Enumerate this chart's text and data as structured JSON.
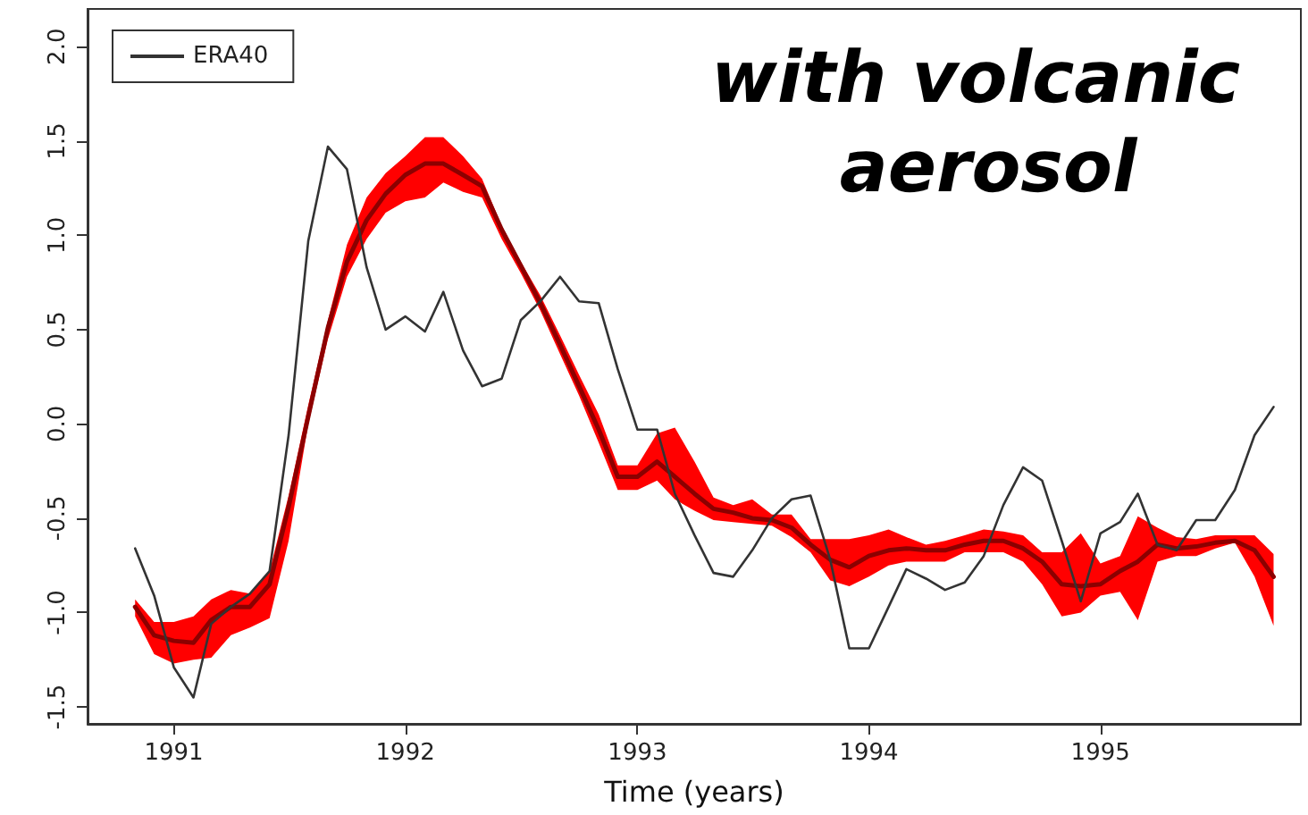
{
  "chart_data": {
    "type": "line",
    "title": "with volcanic aerosol",
    "xlabel": "Time (years)",
    "x": [
      "1990-11",
      "1990-12",
      "1991-01",
      "1991-02",
      "1991-03",
      "1991-04",
      "1991-05",
      "1991-06",
      "1991-07",
      "1991-08",
      "1991-09",
      "1991-10",
      "1991-11",
      "1991-12",
      "1992-01",
      "1992-02",
      "1992-03",
      "1992-04",
      "1992-05",
      "1992-06",
      "1992-07",
      "1992-08",
      "1992-09",
      "1992-10",
      "1992-11",
      "1992-12",
      "1993-01",
      "1993-02",
      "1993-03",
      "1993-04",
      "1993-05",
      "1993-06",
      "1993-07",
      "1993-08",
      "1993-09",
      "1993-10",
      "1993-11",
      "1993-12",
      "1994-01",
      "1994-02",
      "1994-03",
      "1994-04",
      "1994-05",
      "1994-06",
      "1994-07",
      "1994-08",
      "1994-09",
      "1994-10",
      "1994-11",
      "1994-12",
      "1995-01",
      "1995-02",
      "1995-03",
      "1995-04",
      "1995-05",
      "1995-06",
      "1995-07",
      "1995-08",
      "1995-09",
      "1995-10"
    ],
    "series": [
      {
        "color": "#8c0000",
        "values": [
          -0.97,
          -1.12,
          -1.15,
          -1.16,
          -1.04,
          -0.97,
          -0.97,
          -0.85,
          -0.44,
          0.04,
          0.51,
          0.86,
          1.08,
          1.22,
          1.32,
          1.38,
          1.38,
          1.32,
          1.26,
          1.03,
          0.84,
          0.64,
          0.42,
          0.2,
          -0.03,
          -0.28,
          -0.28,
          -0.2,
          -0.28,
          -0.37,
          -0.45,
          -0.47,
          -0.5,
          -0.51,
          -0.55,
          -0.64,
          -0.72,
          -0.76,
          -0.7,
          -0.67,
          -0.66,
          -0.67,
          -0.67,
          -0.64,
          -0.62,
          -0.62,
          -0.66,
          -0.73,
          -0.85,
          -0.86,
          -0.85,
          -0.78,
          -0.73,
          -0.64,
          -0.66,
          -0.65,
          -0.63,
          -0.62,
          -0.67,
          -0.81
        ],
        "upper": [
          -0.93,
          -1.05,
          -1.05,
          -1.02,
          -0.93,
          -0.88,
          -0.9,
          -0.78,
          -0.38,
          0.1,
          0.55,
          0.95,
          1.2,
          1.33,
          1.42,
          1.52,
          1.52,
          1.42,
          1.3,
          1.05,
          0.86,
          0.68,
          0.47,
          0.26,
          0.05,
          -0.22,
          -0.22,
          -0.05,
          -0.02,
          -0.2,
          -0.39,
          -0.43,
          -0.4,
          -0.48,
          -0.48,
          -0.61,
          -0.61,
          -0.61,
          -0.59,
          -0.56,
          -0.6,
          -0.64,
          -0.62,
          -0.59,
          -0.56,
          -0.57,
          -0.59,
          -0.68,
          -0.68,
          -0.58,
          -0.74,
          -0.7,
          -0.49,
          -0.55,
          -0.6,
          -0.61,
          -0.59,
          -0.59,
          -0.59,
          -0.69
        ],
        "lower": [
          -1.02,
          -1.22,
          -1.27,
          -1.25,
          -1.24,
          -1.12,
          -1.08,
          -1.03,
          -0.62,
          0.0,
          0.45,
          0.78,
          0.98,
          1.12,
          1.18,
          1.2,
          1.28,
          1.23,
          1.2,
          0.98,
          0.8,
          0.6,
          0.37,
          0.15,
          -0.1,
          -0.35,
          -0.35,
          -0.3,
          -0.4,
          -0.46,
          -0.51,
          -0.52,
          -0.53,
          -0.54,
          -0.6,
          -0.68,
          -0.83,
          -0.86,
          -0.81,
          -0.75,
          -0.73,
          -0.73,
          -0.73,
          -0.68,
          -0.68,
          -0.68,
          -0.73,
          -0.85,
          -1.02,
          -1.0,
          -0.91,
          -0.89,
          -1.04,
          -0.73,
          -0.7,
          -0.7,
          -0.66,
          -0.63,
          -0.81,
          -1.07
        ]
      },
      {
        "name": "ERA40",
        "color": "#333333",
        "values": [
          -0.66,
          -0.91,
          -1.29,
          -1.45,
          -1.06,
          -0.97,
          -0.9,
          -0.78,
          -0.06,
          0.97,
          1.47,
          1.35,
          0.83,
          0.5,
          0.57,
          0.49,
          0.7,
          0.39,
          0.2,
          0.24,
          0.55,
          0.65,
          0.78,
          0.65,
          0.64,
          0.29,
          -0.03,
          -0.03,
          -0.37,
          -0.59,
          -0.79,
          -0.81,
          -0.67,
          -0.5,
          -0.4,
          -0.38,
          -0.72,
          -1.19,
          -1.19,
          -0.97,
          -0.77,
          -0.82,
          -0.88,
          -0.84,
          -0.7,
          -0.43,
          -0.23,
          -0.3,
          -0.62,
          -0.94,
          -0.58,
          -0.52,
          -0.37,
          -0.64,
          -0.67,
          -0.51,
          -0.51,
          -0.35,
          -0.06,
          0.09
        ]
      }
    ],
    "xlim": [
      "1990-08-18",
      "1995-11-13"
    ],
    "xticks": [
      "1991",
      "1992",
      "1993",
      "1994",
      "1995"
    ],
    "ylim": [
      -1.59,
      2.2
    ],
    "yticks": [
      {
        "value": -1.5,
        "label": "-1.5"
      },
      {
        "value": -1,
        "label": "-1.0"
      },
      {
        "value": -0.5,
        "label": "-0.5"
      },
      {
        "value": 0,
        "label": "0.0"
      },
      {
        "value": 0.5,
        "label": "0.5"
      },
      {
        "value": 1,
        "label": "1.0"
      },
      {
        "value": 1.5,
        "label": "1.5"
      },
      {
        "value": 2,
        "label": "2.0"
      }
    ],
    "legend": "top left",
    "grid": false,
    "marker": "none",
    "line_style": "solid"
  }
}
